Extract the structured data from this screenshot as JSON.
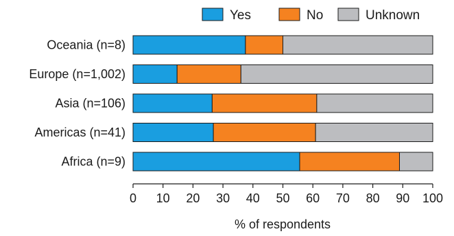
{
  "chart_data": {
    "type": "bar",
    "orientation": "horizontal",
    "stacked": true,
    "categories": [
      "Oceania (n=8)",
      "Europe (n=1,002)",
      "Asia (n=106)",
      "Americas (n=41)",
      "Africa (n=9)"
    ],
    "series": [
      {
        "name": "Yes",
        "color": "#1a9ee0",
        "values": [
          37.5,
          14.7,
          26.4,
          26.8,
          55.6
        ]
      },
      {
        "name": "No",
        "color": "#f58220",
        "values": [
          12.5,
          21.3,
          34.9,
          34.1,
          33.3
        ]
      },
      {
        "name": "Unknown",
        "color": "#bcbdc0",
        "values": [
          50.0,
          64.0,
          38.7,
          39.1,
          11.1
        ]
      }
    ],
    "xlabel": "% of respondents",
    "ylabel": "",
    "xlim": [
      0,
      100
    ],
    "xticks": [
      0,
      10,
      20,
      30,
      40,
      50,
      60,
      70,
      80,
      90,
      100
    ],
    "legend_position": "top-right",
    "grid": false
  }
}
